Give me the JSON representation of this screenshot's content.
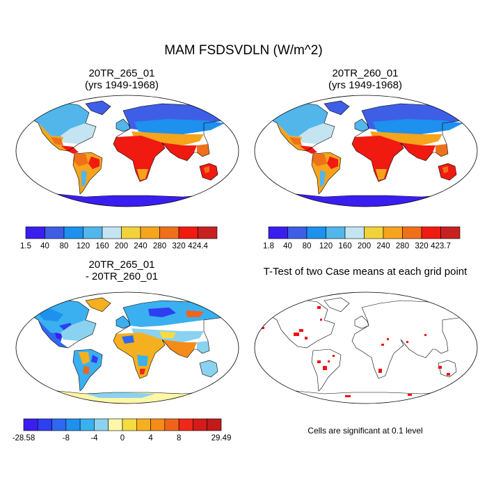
{
  "title": "MAM FSDSVDLN (W/m^2)",
  "panels": [
    {
      "line1": "20TR_265_01",
      "line2": "(yrs 1949-1968)"
    },
    {
      "line1": "20TR_260_01",
      "line2": "(yrs 1949-1968)"
    },
    {
      "line1": "20TR_265_01",
      "line2": "- 20TR_260_01"
    },
    {
      "line1": "T-Test of two Case means at each grid point",
      "line2": ""
    }
  ],
  "colorbars": [
    {
      "labels": [
        "1.5",
        "40",
        "80",
        "120",
        "160",
        "200",
        "240",
        "280",
        "320",
        "424.4"
      ],
      "colors": [
        "#3a1ef0",
        "#3e5ee6",
        "#1e90ee",
        "#52b6ea",
        "#c4e4f2",
        "#f2d23a",
        "#f5a41c",
        "#f0701a",
        "#f01a10",
        "#c82020"
      ]
    },
    {
      "labels": [
        "1.8",
        "40",
        "80",
        "120",
        "160",
        "200",
        "240",
        "280",
        "320",
        "423.7"
      ],
      "colors": [
        "#3a1ef0",
        "#3e5ee6",
        "#1e90ee",
        "#52b6ea",
        "#c4e4f2",
        "#f2d23a",
        "#f5a41c",
        "#f0701a",
        "#f01a10",
        "#c82020"
      ]
    },
    {
      "labels": [
        "-28.58",
        "-8",
        "-4",
        "0",
        "4",
        "8",
        "29.49"
      ],
      "colors": [
        "#3a1ef0",
        "#2e3ef0",
        "#2e68f0",
        "#1e90ee",
        "#3ab0f0",
        "#8ad2f0",
        "#fff6a8",
        "#f6dc40",
        "#f5b020",
        "#f58c18",
        "#f0641a",
        "#f0281a",
        "#d61a1a",
        "#c01a1a"
      ]
    }
  ],
  "note": "Cells are significant at 0.1 level"
}
